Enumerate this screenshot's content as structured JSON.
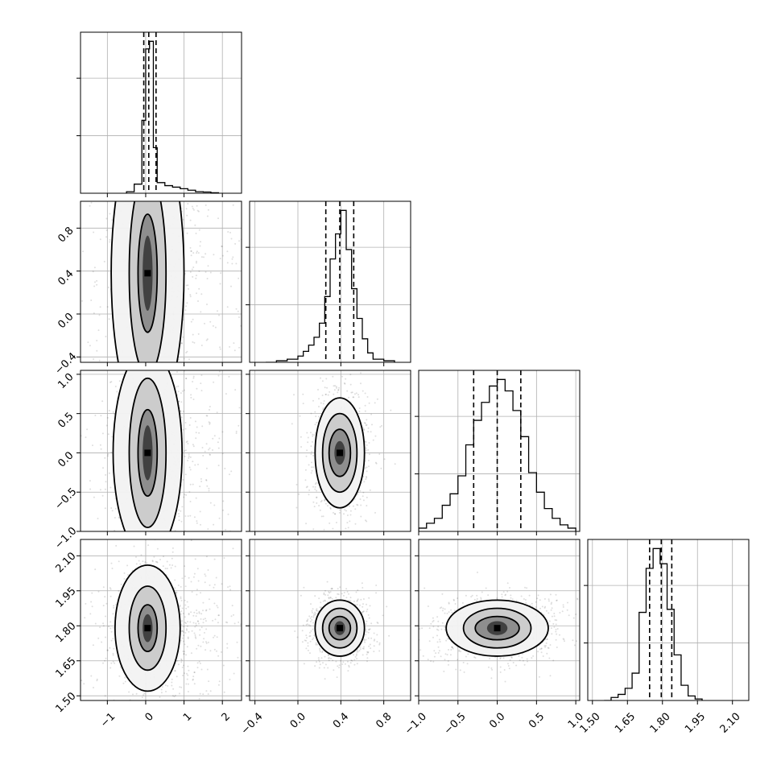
{
  "chart_data": {
    "type": "corner",
    "params": 4,
    "grid": true,
    "colors": {
      "line": "#000000",
      "grid": "#b0b0b0",
      "points": "#000000"
    },
    "ranges": [
      [
        -1.7,
        2.5
      ],
      [
        -0.45,
        1.05
      ],
      [
        -1.0,
        1.05
      ],
      [
        1.48,
        2.17
      ]
    ],
    "ticks": [
      {
        "values": [
          -1,
          0,
          1,
          2
        ],
        "labels": [
          "−1",
          "0",
          "1",
          "2"
        ]
      },
      {
        "values": [
          -0.4,
          0.0,
          0.4,
          0.8
        ],
        "labels": [
          "−0.4",
          "0.0",
          "0.4",
          "0.8"
        ]
      },
      {
        "values": [
          -1.0,
          -0.5,
          0.0,
          0.5,
          1.0
        ],
        "labels": [
          "−1.0",
          "−0.5",
          "0.0",
          "0.5",
          "1.0"
        ]
      },
      {
        "values": [
          1.5,
          1.65,
          1.8,
          1.95,
          2.1
        ],
        "labels": [
          "1.50",
          "1.65",
          "1.80",
          "1.95",
          "2.10"
        ]
      }
    ],
    "histograms": [
      {
        "param": 0,
        "edges": [
          -0.5,
          -0.3,
          -0.1,
          0.0,
          0.1,
          0.2,
          0.3,
          0.5,
          0.7,
          0.9,
          1.1,
          1.3,
          1.5,
          1.7,
          1.9
        ],
        "values": [
          0.01,
          0.06,
          0.48,
          0.95,
          1.0,
          0.3,
          0.07,
          0.05,
          0.04,
          0.03,
          0.02,
          0.01,
          0.008,
          0.003
        ],
        "quantiles": [
          -0.05,
          0.08,
          0.27
        ]
      },
      {
        "param": 1,
        "edges": [
          -0.3,
          -0.2,
          -0.1,
          0.0,
          0.05,
          0.1,
          0.15,
          0.2,
          0.25,
          0.3,
          0.35,
          0.4,
          0.45,
          0.5,
          0.55,
          0.6,
          0.65,
          0.7,
          0.8,
          0.9
        ],
        "values": [
          0.0,
          0.01,
          0.02,
          0.04,
          0.07,
          0.11,
          0.16,
          0.25,
          0.42,
          0.66,
          0.82,
          0.97,
          0.72,
          0.47,
          0.28,
          0.15,
          0.06,
          0.02,
          0.01
        ],
        "quantiles": [
          0.26,
          0.39,
          0.52
        ]
      },
      {
        "param": 2,
        "edges": [
          -1.0,
          -0.9,
          -0.8,
          -0.7,
          -0.6,
          -0.5,
          -0.4,
          -0.3,
          -0.2,
          -0.1,
          0.0,
          0.1,
          0.2,
          0.3,
          0.4,
          0.5,
          0.6,
          0.7,
          0.8,
          0.9,
          1.0
        ],
        "values": [
          0.02,
          0.05,
          0.08,
          0.16,
          0.23,
          0.34,
          0.53,
          0.68,
          0.79,
          0.89,
          0.93,
          0.86,
          0.74,
          0.58,
          0.36,
          0.24,
          0.14,
          0.08,
          0.04,
          0.02
        ],
        "quantiles": [
          -0.3,
          0.0,
          0.3
        ]
      },
      {
        "param": 3,
        "edges": [
          1.55,
          1.58,
          1.61,
          1.64,
          1.67,
          1.7,
          1.73,
          1.76,
          1.79,
          1.82,
          1.85,
          1.88,
          1.91,
          1.94,
          1.97
        ],
        "values": [
          0.0,
          0.02,
          0.04,
          0.08,
          0.18,
          0.58,
          0.87,
          1.0,
          0.9,
          0.6,
          0.3,
          0.1,
          0.03,
          0.01
        ],
        "quantiles": [
          1.745,
          1.795,
          1.84
        ]
      }
    ],
    "pairs": [
      {
        "x": 0,
        "y": 1,
        "center": [
          0.05,
          0.38
        ],
        "levels": [
          [
            0.13,
            0.35
          ],
          [
            0.25,
            0.55
          ],
          [
            0.48,
            0.95
          ],
          [
            0.95,
            1.4
          ]
        ]
      },
      {
        "x": 0,
        "y": 2,
        "center": [
          0.05,
          0.0
        ],
        "levels": [
          [
            0.13,
            0.35
          ],
          [
            0.25,
            0.55
          ],
          [
            0.48,
            0.95
          ],
          [
            0.9,
            1.32
          ]
        ]
      },
      {
        "x": 0,
        "y": 3,
        "center": [
          0.05,
          1.79
        ],
        "levels": [
          [
            0.13,
            0.06
          ],
          [
            0.25,
            0.1
          ],
          [
            0.48,
            0.18
          ],
          [
            0.85,
            0.27
          ]
        ]
      },
      {
        "x": 1,
        "y": 2,
        "center": [
          0.39,
          0.0
        ],
        "levels": [
          [
            0.05,
            0.15
          ],
          [
            0.1,
            0.3
          ],
          [
            0.16,
            0.5
          ],
          [
            0.23,
            0.7
          ]
        ]
      },
      {
        "x": 1,
        "y": 3,
        "center": [
          0.39,
          1.79
        ],
        "levels": [
          [
            0.05,
            0.03
          ],
          [
            0.1,
            0.05
          ],
          [
            0.16,
            0.085
          ],
          [
            0.23,
            0.12
          ]
        ]
      },
      {
        "x": 2,
        "y": 3,
        "center": [
          0.0,
          1.79
        ],
        "levels": [
          [
            0.13,
            0.03
          ],
          [
            0.28,
            0.05
          ],
          [
            0.43,
            0.085
          ],
          [
            0.65,
            0.12
          ]
        ]
      }
    ]
  }
}
